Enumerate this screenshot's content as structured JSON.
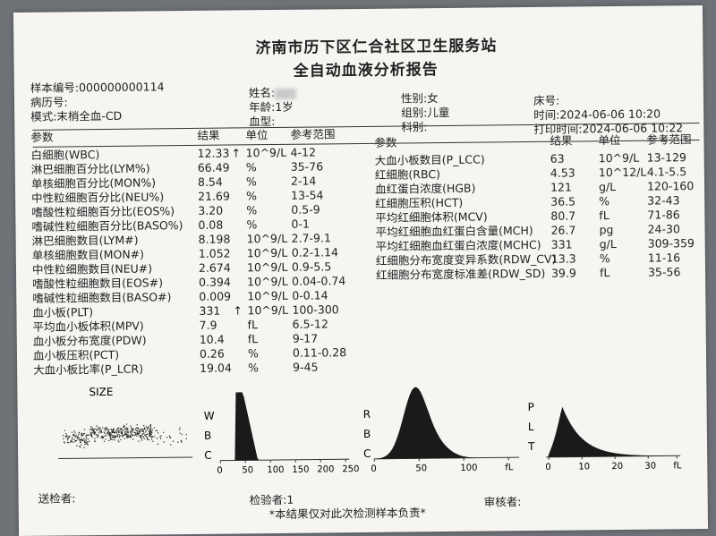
{
  "hospital": "济南市历下区仁合社区卫生服务站",
  "report_title": "全自动血液分析报告",
  "info": {
    "sample_no": "样本编号:000000000114",
    "record_no": "病历号:",
    "mode": "模式:末梢全血-CD",
    "name_label": "姓名:",
    "age": "年龄:1岁",
    "blood_type": "血型:",
    "gender": "性别:女",
    "group": "组别:儿童",
    "dept": "科别:",
    "bed": "床号:",
    "time": "时间:2024-06-06 10:20",
    "print_time": "打印时间:2024-06-06 10:22"
  },
  "headers": {
    "param": "参数",
    "result": "结果",
    "unit": "单位",
    "ref": "参考范围"
  },
  "left_rows": [
    {
      "name": "白细胞(WBC)",
      "result": "12.33",
      "flag": "↑",
      "unit": "10^9/L",
      "ref": "4-12"
    },
    {
      "name": "淋巴细胞百分比(LYM%)",
      "result": "66.49",
      "flag": "",
      "unit": "%",
      "ref": "35-76"
    },
    {
      "name": "单核细胞百分比(MON%)",
      "result": "8.54",
      "flag": "",
      "unit": "%",
      "ref": "2-14"
    },
    {
      "name": "中性粒细胞百分比(NEU%)",
      "result": "21.69",
      "flag": "",
      "unit": "%",
      "ref": "13-54"
    },
    {
      "name": "嗜酸性粒细胞百分比(EOS%)",
      "result": "3.20",
      "flag": "",
      "unit": "%",
      "ref": "0.5-9"
    },
    {
      "name": "嗜碱性粒细胞百分比(BASO%)",
      "result": "0.08",
      "flag": "",
      "unit": "%",
      "ref": "0-1"
    },
    {
      "name": "淋巴细胞数目(LYM#)",
      "result": "8.198",
      "flag": "",
      "unit": "10^9/L",
      "ref": "2.7-9.1"
    },
    {
      "name": "单核细胞数目(MON#)",
      "result": "1.052",
      "flag": "",
      "unit": "10^9/L",
      "ref": "0.2-1.14"
    },
    {
      "name": "中性粒细胞数目(NEU#)",
      "result": "2.674",
      "flag": "",
      "unit": "10^9/L",
      "ref": "0.9-5.5"
    },
    {
      "name": "嗜酸性粒细胞数目(EOS#)",
      "result": "0.394",
      "flag": "",
      "unit": "10^9/L",
      "ref": "0.04-0.74"
    },
    {
      "name": "嗜碱性粒细胞数目(BASO#)",
      "result": "0.009",
      "flag": "",
      "unit": "10^9/L",
      "ref": "0-0.14"
    },
    {
      "name": "血小板(PLT)",
      "result": "331",
      "flag": "↑",
      "unit": "10^9/L",
      "ref": "100-300"
    },
    {
      "name": "平均血小板体积(MPV)",
      "result": "7.9",
      "flag": "",
      "unit": "fL",
      "ref": "6.5-12"
    },
    {
      "name": "血小板分布宽度(PDW)",
      "result": "10.4",
      "flag": "",
      "unit": "fL",
      "ref": "9-17"
    },
    {
      "name": "血小板压积(PCT)",
      "result": "0.26",
      "flag": "",
      "unit": "%",
      "ref": "0.11-0.28"
    },
    {
      "name": "大血小板比率(P_LCR)",
      "result": "19.04",
      "flag": "",
      "unit": "%",
      "ref": "9-45"
    }
  ],
  "right_rows": [
    {
      "name": "大血小板数目(P_LCC)",
      "result": "63",
      "unit": "10^9/L",
      "ref": "13-129"
    },
    {
      "name": "红细胞(RBC)",
      "result": "4.53",
      "unit": "10^12/L",
      "ref": "4.1-5.5"
    },
    {
      "name": "血红蛋白浓度(HGB)",
      "result": "121",
      "unit": "g/L",
      "ref": "120-160"
    },
    {
      "name": "红细胞压积(HCT)",
      "result": "36.5",
      "unit": "%",
      "ref": "32-43"
    },
    {
      "name": "平均红细胞体积(MCV)",
      "result": "80.7",
      "unit": "fL",
      "ref": "71-86"
    },
    {
      "name": "平均红细胞血红蛋白含量(MCH)",
      "result": "26.7",
      "unit": "pg",
      "ref": "24-30"
    },
    {
      "name": "平均红细胞血红蛋白浓度(MCHC)",
      "result": "331",
      "unit": "g/L",
      "ref": "309-359"
    },
    {
      "name": "红细胞分布宽度变异系数(RDW_CV)",
      "result": "13.3",
      "unit": "%",
      "ref": "11-16"
    },
    {
      "name": "红细胞分布宽度标准差(RDW_SD)",
      "result": "39.9",
      "unit": "fL",
      "ref": "35-56"
    }
  ],
  "charts": {
    "size_label": "SIZE",
    "wbc_letters": [
      "W",
      "B",
      "C"
    ],
    "wbc_ticks": [
      "0",
      "50",
      "100",
      "150",
      "200",
      "250"
    ],
    "rbc_letters": [
      "R",
      "B",
      "C"
    ],
    "rbc_ticks": [
      "0",
      "50",
      "100",
      "fL"
    ],
    "plt_letters": [
      "P",
      "L",
      "T"
    ],
    "plt_ticks": [
      "0",
      "10",
      "20",
      "30",
      "fL"
    ]
  },
  "footer": {
    "sender": "送检者:",
    "tester": "检验者:1",
    "reviewer": "审核者:",
    "note": "*本结果仅对此次检测样本负责*"
  }
}
